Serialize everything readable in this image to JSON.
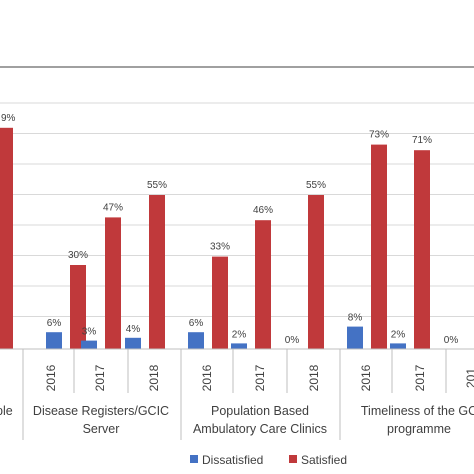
{
  "chart_data": {
    "type": "bar",
    "ylim": [
      0,
      100
    ],
    "grid": true,
    "legend_placement": "bottom",
    "groups": [
      {
        "lines": [
          "ple"
        ],
        "years": [],
        "values": [
          null,
          79
        ],
        "labels": [
          "",
          "9%"
        ],
        "partial": "left"
      },
      {
        "lines": [
          "Disease Registers/GCIC",
          "Server"
        ],
        "years": [
          "2016",
          "2017",
          "2018"
        ]
      },
      {
        "lines": [
          "Population Based",
          "Ambulatory Care Clinics"
        ],
        "years": [
          "2016",
          "2017",
          "2018"
        ]
      },
      {
        "lines": [
          "Timeliness of the GC",
          "programme"
        ],
        "years": [
          "2016",
          "2017",
          "2018"
        ],
        "partial": "right"
      }
    ],
    "categories": [
      "2016",
      "2017",
      "2018",
      "2016",
      "2017",
      "2018",
      "2016",
      "2017",
      "2018"
    ],
    "series": [
      {
        "name": "Dissatisfied",
        "color": "#4472c4",
        "values": [
          6,
          3,
          4,
          6,
          2,
          0,
          8,
          2,
          0
        ],
        "labels": [
          "6%",
          "3%",
          "4%",
          "6%",
          "2%",
          "0%",
          "8%",
          "2%",
          "0%"
        ]
      },
      {
        "name": "Satisfied",
        "color": "#c0393b",
        "values": [
          30,
          47,
          55,
          33,
          46,
          55,
          73,
          71,
          0
        ],
        "labels": [
          "30%",
          "47%",
          "55%",
          "33%",
          "46%",
          "55%",
          "73%",
          "71%",
          ""
        ]
      }
    ],
    "partial_left": {
      "satisfied_value": 79,
      "satisfied_label": "9%"
    },
    "truncated_year_label": "201"
  }
}
